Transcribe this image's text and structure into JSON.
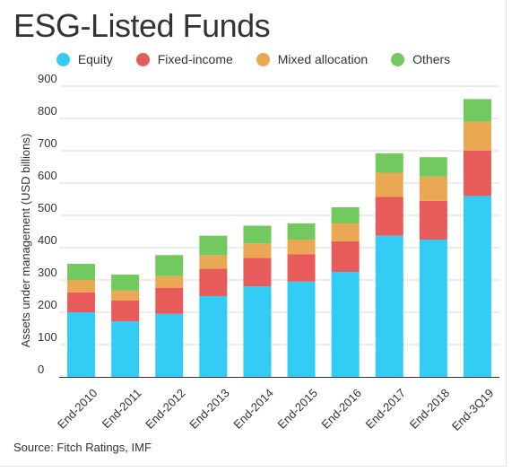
{
  "title": "ESG-Listed Funds",
  "source": "Source: Fitch Ratings, IMF",
  "chart_data": {
    "type": "bar",
    "stacked": true,
    "title": "ESG-Listed Funds",
    "xlabel": "",
    "ylabel": "Assets under management (USD billions)",
    "ylim": [
      0,
      900
    ],
    "yticks": [
      0,
      100,
      200,
      300,
      400,
      500,
      600,
      700,
      800,
      900
    ],
    "grid": true,
    "legend_position": "top",
    "categories": [
      "End-2010",
      "End-2011",
      "End-2012",
      "End-2013",
      "End-2014",
      "End-2015",
      "End-2016",
      "End-2017",
      "End-2018",
      "End-3Q19"
    ],
    "series": [
      {
        "name": "Equity",
        "color": "#33ccf5",
        "values": [
          200,
          172,
          195,
          250,
          280,
          295,
          325,
          437,
          425,
          560
        ]
      },
      {
        "name": "Fixed-income",
        "color": "#e85b5b",
        "values": [
          62,
          65,
          80,
          85,
          88,
          85,
          95,
          120,
          120,
          140
        ]
      },
      {
        "name": "Mixed allocation",
        "color": "#eba853",
        "values": [
          38,
          30,
          37,
          42,
          45,
          45,
          55,
          75,
          75,
          90
        ]
      },
      {
        "name": "Others",
        "color": "#72c95e",
        "values": [
          50,
          50,
          65,
          60,
          55,
          50,
          50,
          60,
          60,
          70
        ]
      }
    ]
  }
}
